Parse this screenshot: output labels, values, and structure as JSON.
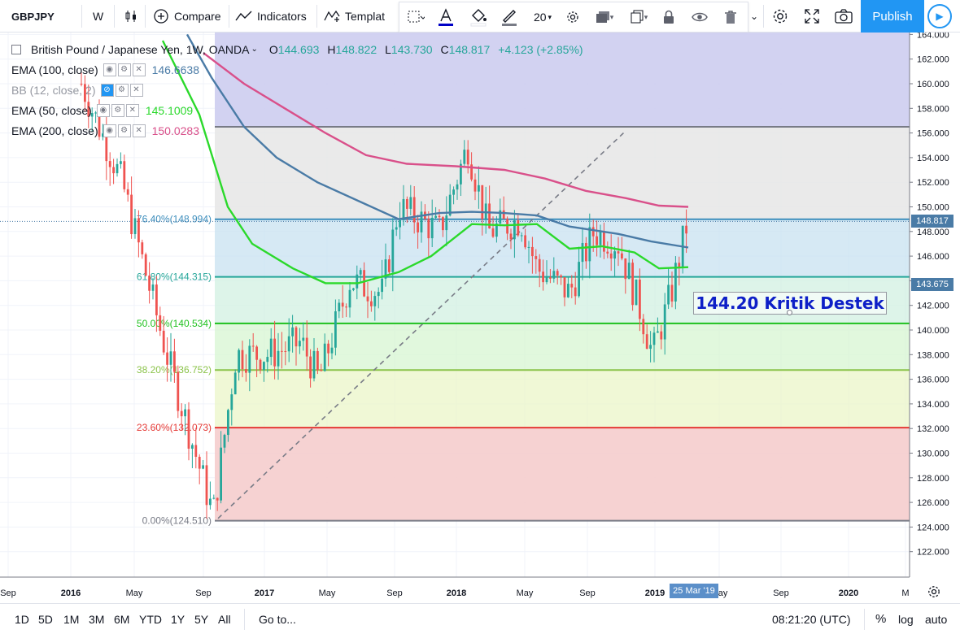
{
  "toolbar": {
    "symbol": "GBPJPY",
    "interval": "W",
    "compare": "Compare",
    "indicators": "Indicators",
    "templates": "Templat",
    "font_size": "20",
    "publish": "Publish"
  },
  "legend": {
    "title": "British Pound / Japanese Yen, 1W, OANDA",
    "open_label": "O",
    "open": "144.693",
    "high_label": "H",
    "high": "148.822",
    "low_label": "L",
    "low": "143.730",
    "close_label": "C",
    "close": "148.817",
    "change": "+4.123 (+2.85%)",
    "indicators": [
      {
        "name": "EMA (100, close)",
        "value": "146.6638",
        "color": "#4a7ba6"
      },
      {
        "name": "BB (12, close, 2)",
        "value": "",
        "color": "#9598a1"
      },
      {
        "name": "EMA (50, close)",
        "value": "145.1009",
        "color": "#2bd92b"
      },
      {
        "name": "EMA (200, close)",
        "value": "150.0283",
        "color": "#d9508a"
      }
    ]
  },
  "fib_labels": [
    {
      "text": "76.40%(148.994)",
      "price": 148.994,
      "color": "#3c8dbc"
    },
    {
      "text": "61.80%(144.315)",
      "price": 144.315,
      "color": "#26a69a"
    },
    {
      "text": "50.00%(140.534)",
      "price": 140.534,
      "color": "#1fc11f"
    },
    {
      "text": "38.20%(136.752)",
      "price": 136.752,
      "color": "#8bc34a"
    },
    {
      "text": "23.60%(132.073)",
      "price": 132.073,
      "color": "#e53935"
    },
    {
      "text": "0.00%(124.510)",
      "price": 124.51,
      "color": "#787b86"
    }
  ],
  "fib_top_price": 156.5,
  "price_axis": [
    "164.000",
    "162.000",
    "160.000",
    "158.000",
    "156.000",
    "154.000",
    "152.000",
    "150.000",
    "148.000",
    "146.000",
    "144.000",
    "142.000",
    "140.000",
    "138.000",
    "136.000",
    "134.000",
    "132.000",
    "130.000",
    "128.000",
    "126.000",
    "124.000",
    "122.000"
  ],
  "price_tags": [
    {
      "text": "148.817",
      "color": "#4a7ba6",
      "price": 148.817
    },
    {
      "text": "143.675",
      "color": "#4a7ba6",
      "price": 143.675
    }
  ],
  "time_axis": [
    {
      "label": "Sep",
      "bold": false
    },
    {
      "label": "2016",
      "bold": true
    },
    {
      "label": "May",
      "bold": false
    },
    {
      "label": "Sep",
      "bold": false
    },
    {
      "label": "2017",
      "bold": true
    },
    {
      "label": "May",
      "bold": false
    },
    {
      "label": "Sep",
      "bold": false
    },
    {
      "label": "2018",
      "bold": true
    },
    {
      "label": "May",
      "bold": false
    },
    {
      "label": "Sep",
      "bold": false
    },
    {
      "label": "2019",
      "bold": true
    },
    {
      "label": "May",
      "bold": false
    },
    {
      "label": "Sep",
      "bold": false
    },
    {
      "label": "2020",
      "bold": true
    },
    {
      "label": "M",
      "bold": false
    }
  ],
  "current_date": "25 Mar '19",
  "callout": "144.20 Kritik Destek",
  "bottombar": {
    "ranges": [
      "1D",
      "5D",
      "1M",
      "3M",
      "6M",
      "YTD",
      "1Y",
      "5Y",
      "All"
    ],
    "goto": "Go to...",
    "clock": "08:21:20 (UTC)",
    "percent": "%",
    "log": "log",
    "auto": "auto"
  },
  "colors": {
    "accent": "#2196f3",
    "up": "#26a69a",
    "down": "#ef5350"
  }
}
